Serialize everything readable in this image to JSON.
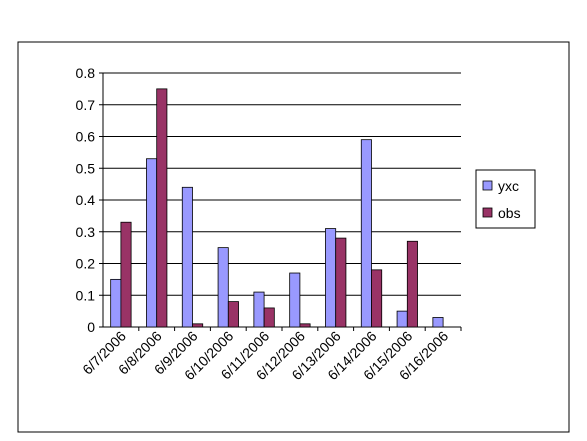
{
  "chart_data": {
    "type": "bar",
    "categories": [
      "6/7/2006",
      "6/8/2006",
      "6/9/2006",
      "6/10/2006",
      "6/11/2006",
      "6/12/2006",
      "6/13/2006",
      "6/14/2006",
      "6/15/2006",
      "6/16/2006"
    ],
    "series": [
      {
        "name": "yxc",
        "color": "#9999ff",
        "values": [
          0.15,
          0.53,
          0.44,
          0.25,
          0.11,
          0.17,
          0.31,
          0.59,
          0.05,
          0.03
        ]
      },
      {
        "name": "obs",
        "color": "#993366",
        "values": [
          0.33,
          0.75,
          0.01,
          0.08,
          0.06,
          0.01,
          0.28,
          0.18,
          0.27,
          null
        ]
      }
    ],
    "ylim": [
      0,
      0.8
    ],
    "yticks": [
      0,
      0.1,
      0.2,
      0.3,
      0.4,
      0.5,
      0.6,
      0.7,
      0.8
    ],
    "grid": true,
    "legend": "right"
  }
}
